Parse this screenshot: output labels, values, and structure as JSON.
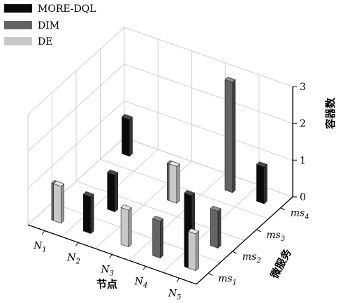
{
  "chart_data": {
    "type": "bar3d",
    "title": "",
    "x_axis": {
      "label": "节点",
      "ticks": [
        {
          "base": "N",
          "sub": "1"
        },
        {
          "base": "N",
          "sub": "2"
        },
        {
          "base": "N",
          "sub": "3"
        },
        {
          "base": "N",
          "sub": "4"
        },
        {
          "base": "N",
          "sub": "5"
        }
      ]
    },
    "y_axis": {
      "label": "微服务",
      "ticks": [
        {
          "base": "ms",
          "sub": "1"
        },
        {
          "base": "ms",
          "sub": "2"
        },
        {
          "base": "ms",
          "sub": "3"
        },
        {
          "base": "ms",
          "sub": "4"
        }
      ]
    },
    "z_axis": {
      "label": "容器数",
      "ticks": [
        "0",
        "1",
        "2",
        "3"
      ],
      "range": [
        0,
        3
      ]
    },
    "grid": true,
    "legend_position": "top-left",
    "series": [
      {
        "name": "MORE-DQL",
        "color": "#0a0a0a",
        "side_color": "#303030",
        "top_color": "#4a4a4a",
        "bars": [
          {
            "node": "N1",
            "ms": "ms4",
            "value": 1
          },
          {
            "node": "N2",
            "ms": "ms1",
            "value": 1
          },
          {
            "node": "N2",
            "ms": "ms2",
            "value": 1
          },
          {
            "node": "N5",
            "ms": "ms1",
            "value": 2
          },
          {
            "node": "N5",
            "ms": "ms4",
            "value": 1
          }
        ]
      },
      {
        "name": "DIM",
        "color": "#646464",
        "side_color": "#3e3e3e",
        "top_color": "#8c8c8c",
        "bars": [
          {
            "node": "N1",
            "ms": "ms1",
            "value": 1
          },
          {
            "node": "N4",
            "ms": "ms1",
            "value": 1
          },
          {
            "node": "N4",
            "ms": "ms4",
            "value": 3
          },
          {
            "node": "N5",
            "ms": "ms2",
            "value": 1
          },
          {
            "node": "N3",
            "ms": "ms3",
            "value": 1
          }
        ]
      },
      {
        "name": "DE",
        "color": "#c8c8c8",
        "side_color": "#9c9c9c",
        "top_color": "#e6e6e6",
        "bars": [
          {
            "node": "N1",
            "ms": "ms1",
            "value": 1
          },
          {
            "node": "N3",
            "ms": "ms1",
            "value": 1
          },
          {
            "node": "N3",
            "ms": "ms3",
            "value": 1
          },
          {
            "node": "N5",
            "ms": "ms1",
            "value": 1
          }
        ]
      }
    ]
  }
}
